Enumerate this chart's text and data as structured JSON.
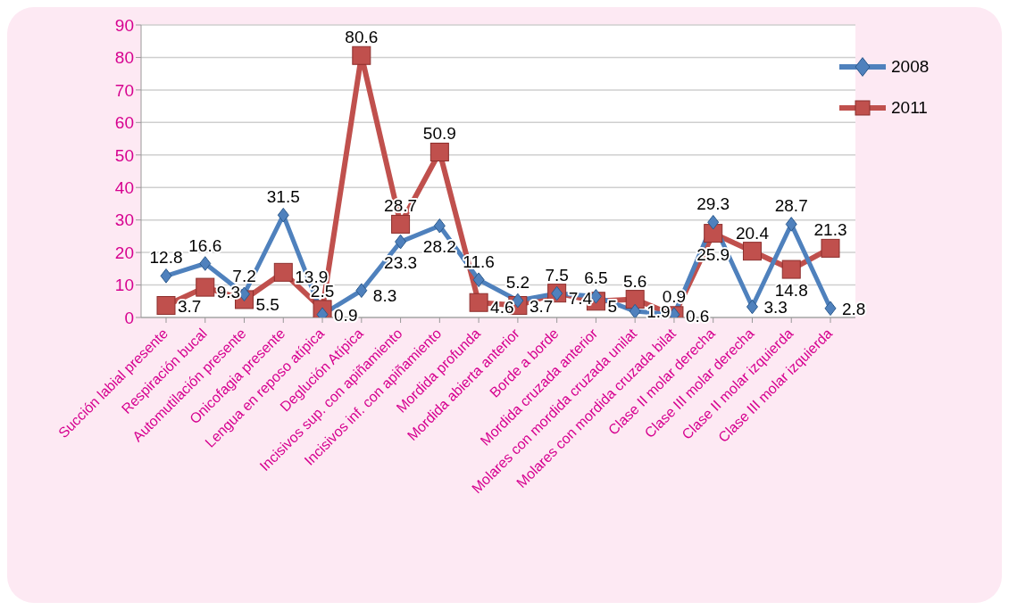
{
  "chart_data": {
    "type": "line",
    "categories": [
      "Succión labial presente",
      "Respiración bucal",
      "Automutilación  presente",
      "Onicofagia presente",
      "Lengua en reposo atípica",
      "Deglución Atípica",
      "Incisivos sup. con apiñamiento",
      "Incisivos inf. con apiñamiento",
      "Mordida profunda",
      "Mordida abierta anterior",
      "Borde a borde",
      "Mordida cruzada anterior",
      "Molares con mordida cruzada unilat",
      "Molares con mordida cruzada bilat",
      "Clase II molar derecha",
      "Clase III molar derecha",
      "Clase II molar izquierda",
      "Clase III molar izquierda"
    ],
    "series": [
      {
        "name": "2008",
        "color": "#4f81bd",
        "marker": "diamond",
        "values": [
          12.8,
          16.6,
          7.2,
          31.5,
          0.9,
          8.3,
          23.3,
          28.2,
          11.6,
          5.2,
          7.4,
          6.5,
          1.9,
          0.9,
          29.3,
          3.3,
          28.7,
          2.8
        ]
      },
      {
        "name": "2011",
        "color": "#c0504d",
        "marker": "square",
        "values": [
          3.7,
          9.3,
          5.5,
          13.9,
          2.5,
          80.6,
          28.7,
          50.9,
          4.6,
          3.7,
          7.5,
          5,
          5.6,
          0.6,
          25.9,
          20.4,
          14.8,
          21.3
        ]
      }
    ],
    "ylim": [
      0,
      90
    ],
    "yticks": [
      0,
      10,
      20,
      30,
      40,
      50,
      60,
      70,
      80,
      90
    ],
    "grid": "y",
    "legend": "top right",
    "data_labels": true,
    "line_style": "solid"
  }
}
